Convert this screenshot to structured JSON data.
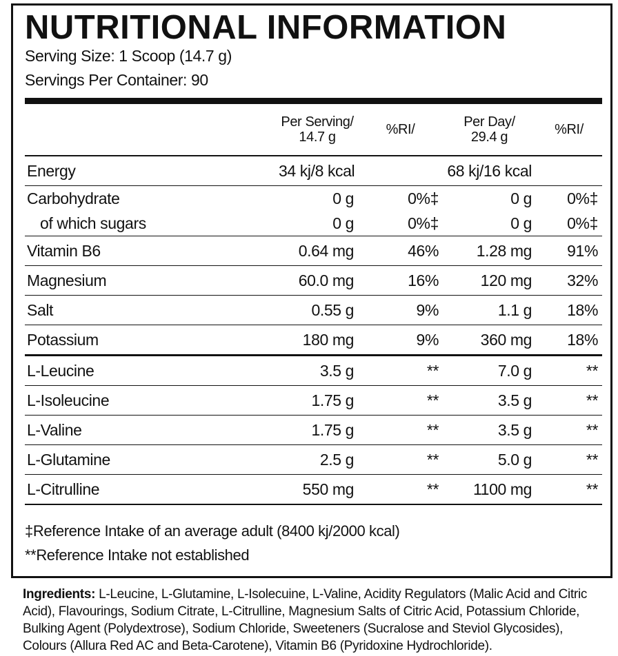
{
  "header": {
    "title": "NUTRITIONAL INFORMATION",
    "serving_size": "Serving Size: 1 Scoop (14.7 g)",
    "servings_per_container": "Servings Per Container: 90"
  },
  "table": {
    "headers": [
      [
        "Per Serving/",
        "14.7 g"
      ],
      [
        "%RI/"
      ],
      [
        "Per Day/",
        "29.4 g"
      ],
      [
        "%RI/"
      ]
    ],
    "sections": [
      {
        "rows": [
          {
            "label": "Energy",
            "per_serving": "34 kj/8 kcal",
            "per_day": "68 kj/16 kcal"
          },
          {
            "label": "Carbohydrate",
            "per_serving": "0 g",
            "ri_serving": "0%‡",
            "per_day": "0 g",
            "ri_day": "0%‡",
            "sub": {
              "label": "of which sugars",
              "per_serving": "0 g",
              "ri_serving": "0%‡",
              "per_day": "0 g",
              "ri_day": "0%‡"
            }
          },
          {
            "label": "Vitamin B6",
            "per_serving": "0.64 mg",
            "ri_serving": "46%",
            "per_day": "1.28 mg",
            "ri_day": "91%"
          },
          {
            "label": "Magnesium",
            "per_serving": "60.0 mg",
            "ri_serving": "16%",
            "per_day": "120 mg",
            "ri_day": "32%"
          },
          {
            "label": "Salt",
            "per_serving": "0.55 g",
            "ri_serving": "9%",
            "per_day": "1.1 g",
            "ri_day": "18%"
          },
          {
            "label": "Potassium",
            "per_serving": "180 mg",
            "ri_serving": "9%",
            "per_day": "360 mg",
            "ri_day": "18%"
          }
        ]
      },
      {
        "rows": [
          {
            "label": "L-Leucine",
            "per_serving": "3.5 g",
            "ri_serving": "**",
            "per_day": "7.0 g",
            "ri_day": "**"
          },
          {
            "label": "L-Isoleucine",
            "per_serving": "1.75 g",
            "ri_serving": "**",
            "per_day": "3.5 g",
            "ri_day": "**"
          },
          {
            "label": "L-Valine",
            "per_serving": "1.75 g",
            "ri_serving": "**",
            "per_day": "3.5 g",
            "ri_day": "**"
          },
          {
            "label": "L-Glutamine",
            "per_serving": "2.5 g",
            "ri_serving": "**",
            "per_day": "5.0 g",
            "ri_day": "**"
          },
          {
            "label": "L-Citrulline",
            "per_serving": "550 mg",
            "ri_serving": "**",
            "per_day": "1100 mg",
            "ri_day": "**"
          }
        ]
      }
    ]
  },
  "footnotes": [
    "‡Reference Intake of an average adult (8400 kj/2000 kcal)",
    "**Reference Intake not established"
  ],
  "ingredients": {
    "label": "Ingredients:",
    "text": "L-Leucine, L-Glutamine, L-Isolecuine, L-Valine, Acidity Regulators (Malic Acid and Citric Acid), Flavourings, Sodium Citrate, L-Citrulline, Magnesium Salts of Citric Acid, Potassium Chloride, Bulking Agent (Polydextrose), Sodium Chloride, Sweeteners (Sucralose and Steviol Glycosides), Colours (Allura Red AC and Beta-Carotene), Vitamin B6 (Pyridoxine Hydrochloride)."
  }
}
